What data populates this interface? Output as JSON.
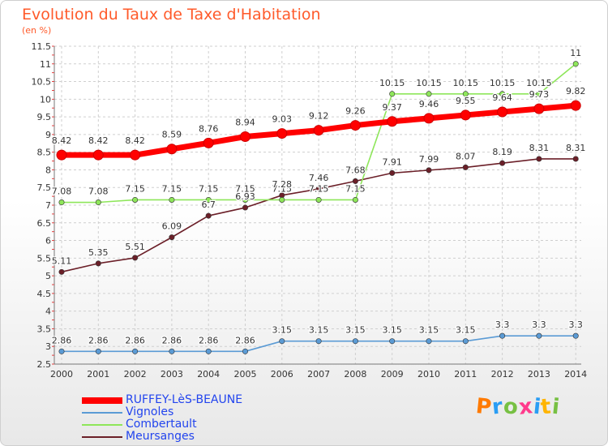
{
  "header": {
    "title": "Evolution du Taux de Taxe d'Habitation",
    "unit": "(en %)"
  },
  "brand": {
    "logo_text": "Proxiti"
  },
  "chart_data": {
    "type": "line",
    "title": "Evolution du Taux de Taxe d'Habitation",
    "ylabel": "(en %)",
    "xlabel": "",
    "x": [
      "2000",
      "2001",
      "2002",
      "2003",
      "2004",
      "2005",
      "2006",
      "2007",
      "2008",
      "2009",
      "2010",
      "2011",
      "2012",
      "2013",
      "2014"
    ],
    "ylim": [
      2.5,
      11.5
    ],
    "yticks": [
      "2.5",
      "3",
      "3.5",
      "4",
      "4.5",
      "5",
      "5.5",
      "6",
      "6.5",
      "7",
      "7.5",
      "8",
      "8.5",
      "9",
      "9.5",
      "10",
      "10.5",
      "11",
      "11.5"
    ],
    "grid": true,
    "legend_position": "bottom-left",
    "series": [
      {
        "name": "RUFFEY-LèS-BEAUNE",
        "color": "#ff0000",
        "values": [
          8.42,
          8.42,
          8.42,
          8.59,
          8.76,
          8.94,
          9.03,
          9.12,
          9.26,
          9.37,
          9.46,
          9.55,
          9.64,
          9.73,
          9.82
        ],
        "labels": [
          "8.42",
          "8.42",
          "8.42",
          "8.59",
          "8.76",
          "8.94",
          "9.03",
          "9.12",
          "9.26",
          "9.37",
          "9.46",
          "9.55",
          "9.64",
          "9.73",
          "9.82"
        ]
      },
      {
        "name": "Vignoles",
        "color": "#5b9bd5",
        "values": [
          2.86,
          2.86,
          2.86,
          2.86,
          2.86,
          2.86,
          3.15,
          3.15,
          3.15,
          3.15,
          3.15,
          3.15,
          3.3,
          3.3,
          3.3
        ],
        "labels": [
          "2.86",
          "2.86",
          "2.86",
          "2.86",
          "2.86",
          "2.86",
          "3.15",
          "3.15",
          "3.15",
          "3.15",
          "3.15",
          "3.15",
          "3.3",
          "3.3",
          "3.3"
        ]
      },
      {
        "name": "Combertault",
        "color": "#8ee65a",
        "values": [
          7.08,
          7.08,
          7.15,
          7.15,
          7.15,
          7.15,
          7.15,
          7.15,
          7.15,
          10.15,
          10.15,
          10.15,
          10.15,
          10.15,
          11
        ],
        "labels": [
          "7.08",
          "7.08",
          "7.15",
          "7.15",
          "7.15",
          "7.15",
          "7.15",
          "7.15",
          "7.15",
          "10.15",
          "10.15",
          "10.15",
          "10.15",
          "10.15",
          "11"
        ]
      },
      {
        "name": "Meursanges",
        "color": "#6b1f28",
        "values": [
          5.11,
          5.35,
          5.51,
          6.09,
          6.7,
          6.93,
          7.28,
          7.46,
          7.68,
          7.91,
          7.99,
          8.07,
          8.19,
          8.31,
          8.31
        ],
        "labels": [
          "5.11",
          "5.35",
          "5.51",
          "6.09",
          "6.7",
          "6.93",
          "7.28",
          "7.46",
          "7.68",
          "7.91",
          "7.99",
          "8.07",
          "8.19",
          "8.31",
          "8.31"
        ]
      }
    ]
  }
}
